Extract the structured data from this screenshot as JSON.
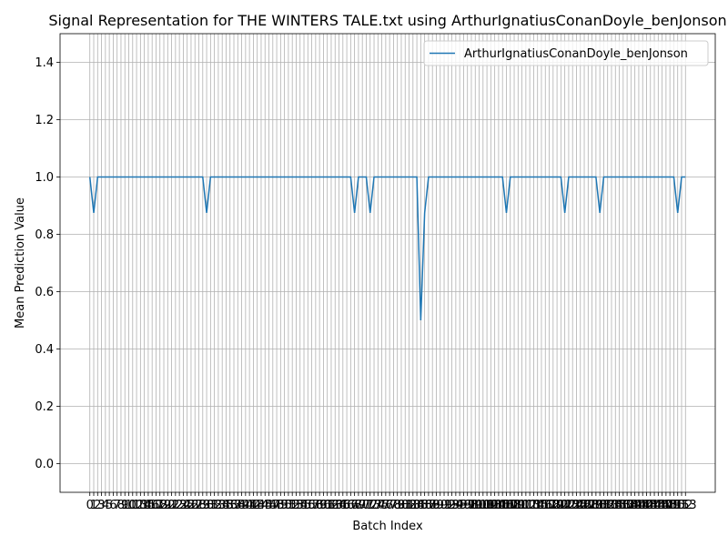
{
  "chart_data": {
    "type": "line",
    "title": "Signal Representation for THE WINTERS TALE.txt using ArthurIgnatiusConanDoyle_benJonson",
    "xlabel": "Batch Index",
    "ylabel": "Mean Prediction Value",
    "x": [
      0,
      1,
      2,
      3,
      4,
      5,
      6,
      7,
      8,
      9,
      10,
      11,
      12,
      13,
      14,
      15,
      16,
      17,
      18,
      19,
      20,
      21,
      22,
      23,
      24,
      25,
      26,
      27,
      28,
      29,
      30,
      31,
      32,
      33,
      34,
      35,
      36,
      37,
      38,
      39,
      40,
      41,
      42,
      43,
      44,
      45,
      46,
      47,
      48,
      49,
      50,
      51,
      52,
      53,
      54,
      55,
      56,
      57,
      58,
      59,
      60,
      61,
      62,
      63,
      64,
      65,
      66,
      67,
      68,
      69,
      70,
      71,
      72,
      73,
      74,
      75,
      76,
      77,
      78,
      79,
      80,
      81,
      82,
      83,
      84,
      85,
      86,
      87,
      88,
      89,
      90,
      91,
      92,
      93,
      94,
      95,
      96,
      97,
      98,
      99,
      100,
      101,
      102,
      103,
      104,
      105,
      106,
      107,
      108,
      109,
      110,
      111,
      112,
      113,
      114,
      115,
      116,
      117,
      118,
      119,
      120,
      121,
      122,
      123,
      124,
      125,
      126,
      127,
      128,
      129,
      130,
      131,
      132,
      133,
      134,
      135,
      136,
      137,
      138,
      139,
      140,
      141,
      142,
      143,
      144,
      145,
      146,
      147,
      148,
      149,
      150,
      151,
      152,
      153
    ],
    "series": [
      {
        "name": "ArthurIgnatiusConanDoyle_benJonson",
        "color": "#1f77b4",
        "values": [
          1,
          0.875,
          1,
          1,
          1,
          1,
          1,
          1,
          1,
          1,
          1,
          1,
          1,
          1,
          1,
          1,
          1,
          1,
          1,
          1,
          1,
          1,
          1,
          1,
          1,
          1,
          1,
          1,
          1,
          1,
          0.875,
          1,
          1,
          1,
          1,
          1,
          1,
          1,
          1,
          1,
          1,
          1,
          1,
          1,
          1,
          1,
          1,
          1,
          1,
          1,
          1,
          1,
          1,
          1,
          1,
          1,
          1,
          1,
          1,
          1,
          1,
          1,
          1,
          1,
          1,
          1,
          1,
          1,
          0.875,
          1,
          1,
          1,
          0.875,
          1,
          1,
          1,
          1,
          1,
          1,
          1,
          1,
          1,
          1,
          1,
          1,
          0.5,
          0.875,
          1,
          1,
          1,
          1,
          1,
          1,
          1,
          1,
          1,
          1,
          1,
          1,
          1,
          1,
          1,
          1,
          1,
          1,
          1,
          1,
          0.875,
          1,
          1,
          1,
          1,
          1,
          1,
          1,
          1,
          1,
          1,
          1,
          1,
          1,
          1,
          0.875,
          1,
          1,
          1,
          1,
          1,
          1,
          1,
          1,
          0.875,
          1,
          1,
          1,
          1,
          1,
          1,
          1,
          1,
          1,
          1,
          1,
          1,
          1,
          1,
          1,
          1,
          1,
          1,
          1,
          0.875,
          1,
          1
        ]
      }
    ],
    "xlim": [
      -7.65,
      160.65
    ],
    "xticks": [
      0,
      1,
      2,
      3,
      4,
      5,
      6,
      7,
      8,
      9,
      10,
      11,
      12,
      13,
      14,
      15,
      16,
      17,
      18,
      19,
      20,
      21,
      22,
      23,
      24,
      25,
      26,
      27,
      28,
      29,
      30,
      31,
      32,
      33,
      34,
      35,
      36,
      37,
      38,
      39,
      40,
      41,
      42,
      43,
      44,
      45,
      46,
      47,
      48,
      49,
      50,
      51,
      52,
      53,
      54,
      55,
      56,
      57,
      58,
      59,
      60,
      61,
      62,
      63,
      64,
      65,
      66,
      67,
      68,
      69,
      70,
      71,
      72,
      73,
      74,
      75,
      76,
      77,
      78,
      79,
      80,
      81,
      82,
      83,
      84,
      85,
      86,
      87,
      88,
      89,
      90,
      91,
      92,
      93,
      94,
      95,
      96,
      97,
      98,
      99,
      100,
      101,
      102,
      103,
      104,
      105,
      106,
      107,
      108,
      109,
      110,
      111,
      112,
      113,
      114,
      115,
      116,
      117,
      118,
      119,
      120,
      121,
      122,
      123,
      124,
      125,
      126,
      127,
      128,
      129,
      130,
      131,
      132,
      133,
      134,
      135,
      136,
      137,
      138,
      139,
      140,
      141,
      142,
      143,
      144,
      145,
      146,
      147,
      148,
      149,
      150,
      151,
      152,
      153
    ],
    "ylim": [
      -0.1,
      1.5
    ],
    "yticks": [
      {
        "value": 0,
        "label": "0.0"
      },
      0.2,
      0.4,
      0.6,
      0.8,
      {
        "value": 1,
        "label": "1.0"
      },
      1.2,
      1.4
    ],
    "grid": true,
    "legend": "upper right"
  }
}
